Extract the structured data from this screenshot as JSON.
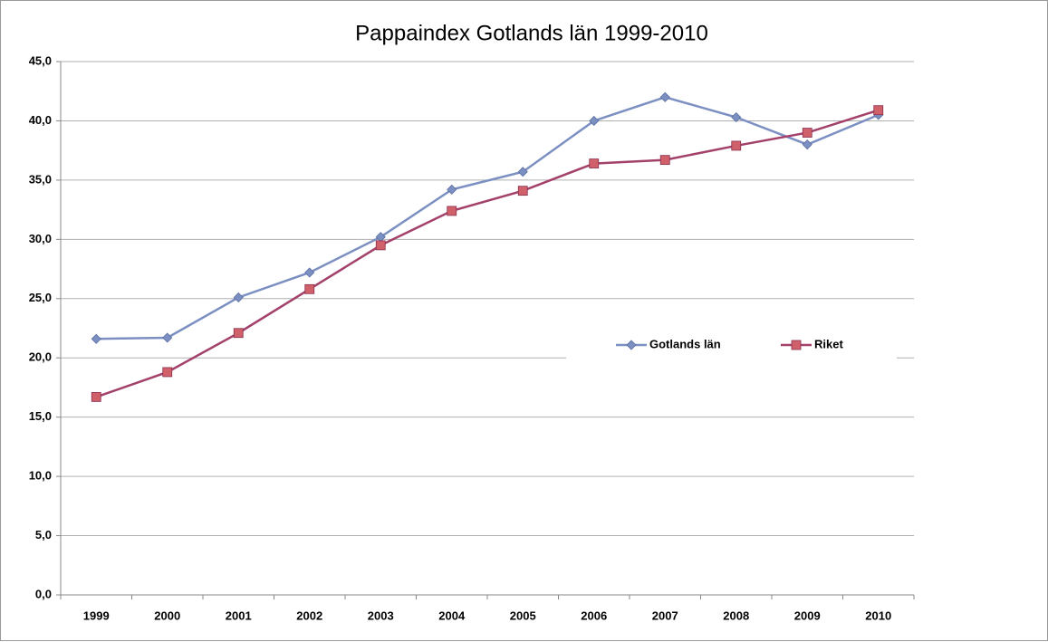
{
  "chart_data": {
    "type": "line",
    "title": "Pappaindex Gotlands län 1999-2010",
    "categories": [
      "1999",
      "2000",
      "2001",
      "2002",
      "2003",
      "2004",
      "2005",
      "2006",
      "2007",
      "2008",
      "2009",
      "2010"
    ],
    "series": [
      {
        "name": "Gotlands län",
        "color": "#7b8fc2",
        "marker": "diamond",
        "values": [
          21.6,
          21.7,
          25.1,
          27.2,
          30.2,
          34.2,
          35.7,
          40.0,
          42.0,
          40.3,
          38.0,
          40.5
        ]
      },
      {
        "name": "Riket",
        "color": "#a3416b",
        "marker": "square",
        "values": [
          16.7,
          18.8,
          22.1,
          25.8,
          29.5,
          32.4,
          34.1,
          36.4,
          36.7,
          37.9,
          39.0,
          40.9
        ]
      }
    ],
    "ylim": [
      0,
      45
    ],
    "yticks": [
      {
        "value": 0,
        "label": "0,0"
      },
      {
        "value": 5,
        "label": "5,0"
      },
      {
        "value": 10,
        "label": "10,0"
      },
      {
        "value": 15,
        "label": "15,0"
      },
      {
        "value": 20,
        "label": "20,0"
      },
      {
        "value": 25,
        "label": "25,0"
      },
      {
        "value": 30,
        "label": "30,0"
      },
      {
        "value": 35,
        "label": "35,0"
      },
      {
        "value": 40,
        "label": "40,0"
      },
      {
        "value": 45,
        "label": "45,0"
      }
    ],
    "grid": true,
    "legend": "right"
  }
}
